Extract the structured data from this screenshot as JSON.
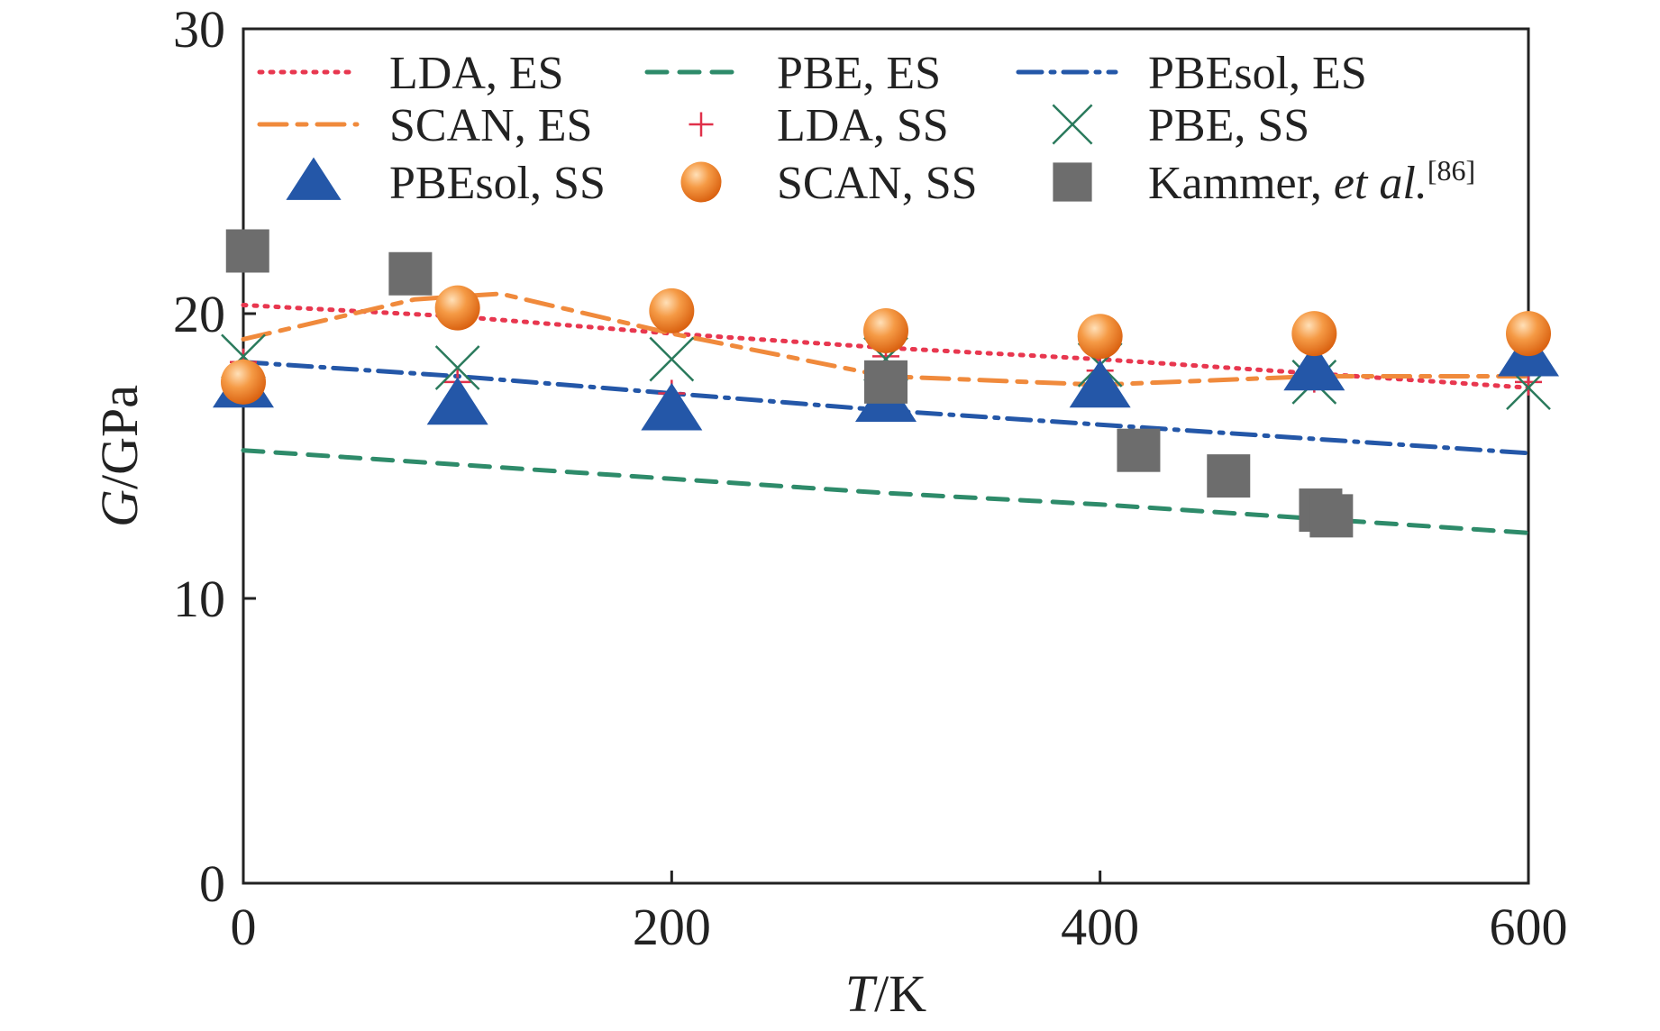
{
  "chart_data": {
    "type": "line",
    "xlabel": {
      "italic": "T",
      "rest": "/K"
    },
    "ylabel": {
      "italic": "G",
      "rest": "/GPa"
    },
    "xlim": [
      0,
      600
    ],
    "ylim": [
      0,
      30
    ],
    "xticks": [
      "0",
      "200",
      "400",
      "600"
    ],
    "yticks": [
      "0",
      "10",
      "20",
      "30"
    ],
    "grid": false,
    "legend_position": "top",
    "series": [
      {
        "name": "LDA, ES",
        "style": "dotted",
        "color": "#e8374f",
        "x": [
          0,
          100,
          200,
          300,
          400,
          500,
          600
        ],
        "y": [
          20.3,
          19.9,
          19.3,
          18.8,
          18.4,
          17.9,
          17.4
        ]
      },
      {
        "name": "PBE, ES",
        "style": "dashed",
        "color": "#2e8b6a",
        "x": [
          0,
          100,
          200,
          300,
          400,
          500,
          600
        ],
        "y": [
          15.2,
          14.7,
          14.2,
          13.7,
          13.3,
          12.8,
          12.3
        ]
      },
      {
        "name": "PBEsol, ES",
        "style": "dashdot",
        "color": "#2457a8",
        "x": [
          0,
          100,
          200,
          300,
          400,
          500,
          600
        ],
        "y": [
          18.3,
          17.8,
          17.2,
          16.6,
          16.1,
          15.6,
          15.1
        ]
      },
      {
        "name": "SCAN, ES",
        "style": "longdash",
        "color": "#f08a3c",
        "x": [
          0,
          80,
          120,
          200,
          300,
          400,
          500,
          600
        ],
        "y": [
          19.1,
          20.5,
          20.7,
          19.3,
          17.8,
          17.5,
          17.8,
          17.8
        ]
      },
      {
        "name": "LDA, SS",
        "style": "plus",
        "color": "#e0304a",
        "x": [
          0,
          100,
          200,
          300,
          400,
          500,
          600
        ],
        "y": [
          18.3,
          17.6,
          17.2,
          18.5,
          18.0,
          17.7,
          17.6
        ]
      },
      {
        "name": "PBE, SS",
        "style": "cross",
        "color": "#2a7a5c",
        "x": [
          0,
          100,
          200,
          300,
          400,
          500,
          600
        ],
        "y": [
          18.5,
          18.1,
          18.4,
          18.4,
          18.2,
          17.6,
          17.4
        ]
      },
      {
        "name": "PBEsol, SS",
        "style": "triangle",
        "color": "#2457a8",
        "x": [
          0,
          100,
          200,
          300,
          400,
          500,
          600
        ],
        "y": [
          17.4,
          16.8,
          16.6,
          16.9,
          17.4,
          18.0,
          18.5
        ]
      },
      {
        "name": "SCAN, SS",
        "style": "sphere",
        "color": "#f07f26",
        "x": [
          0,
          100,
          200,
          300,
          400,
          500,
          600
        ],
        "y": [
          17.6,
          20.2,
          20.1,
          19.4,
          19.2,
          19.3,
          19.3
        ]
      },
      {
        "name": "Kammer, ",
        "name_italic": "et al.",
        "name_sup": "[86]",
        "style": "square",
        "color": "#6d6d6d",
        "x": [
          2,
          78,
          300,
          418,
          460,
          503,
          508
        ],
        "y": [
          22.2,
          21.4,
          17.6,
          15.2,
          14.3,
          13.1,
          12.9
        ]
      }
    ]
  }
}
